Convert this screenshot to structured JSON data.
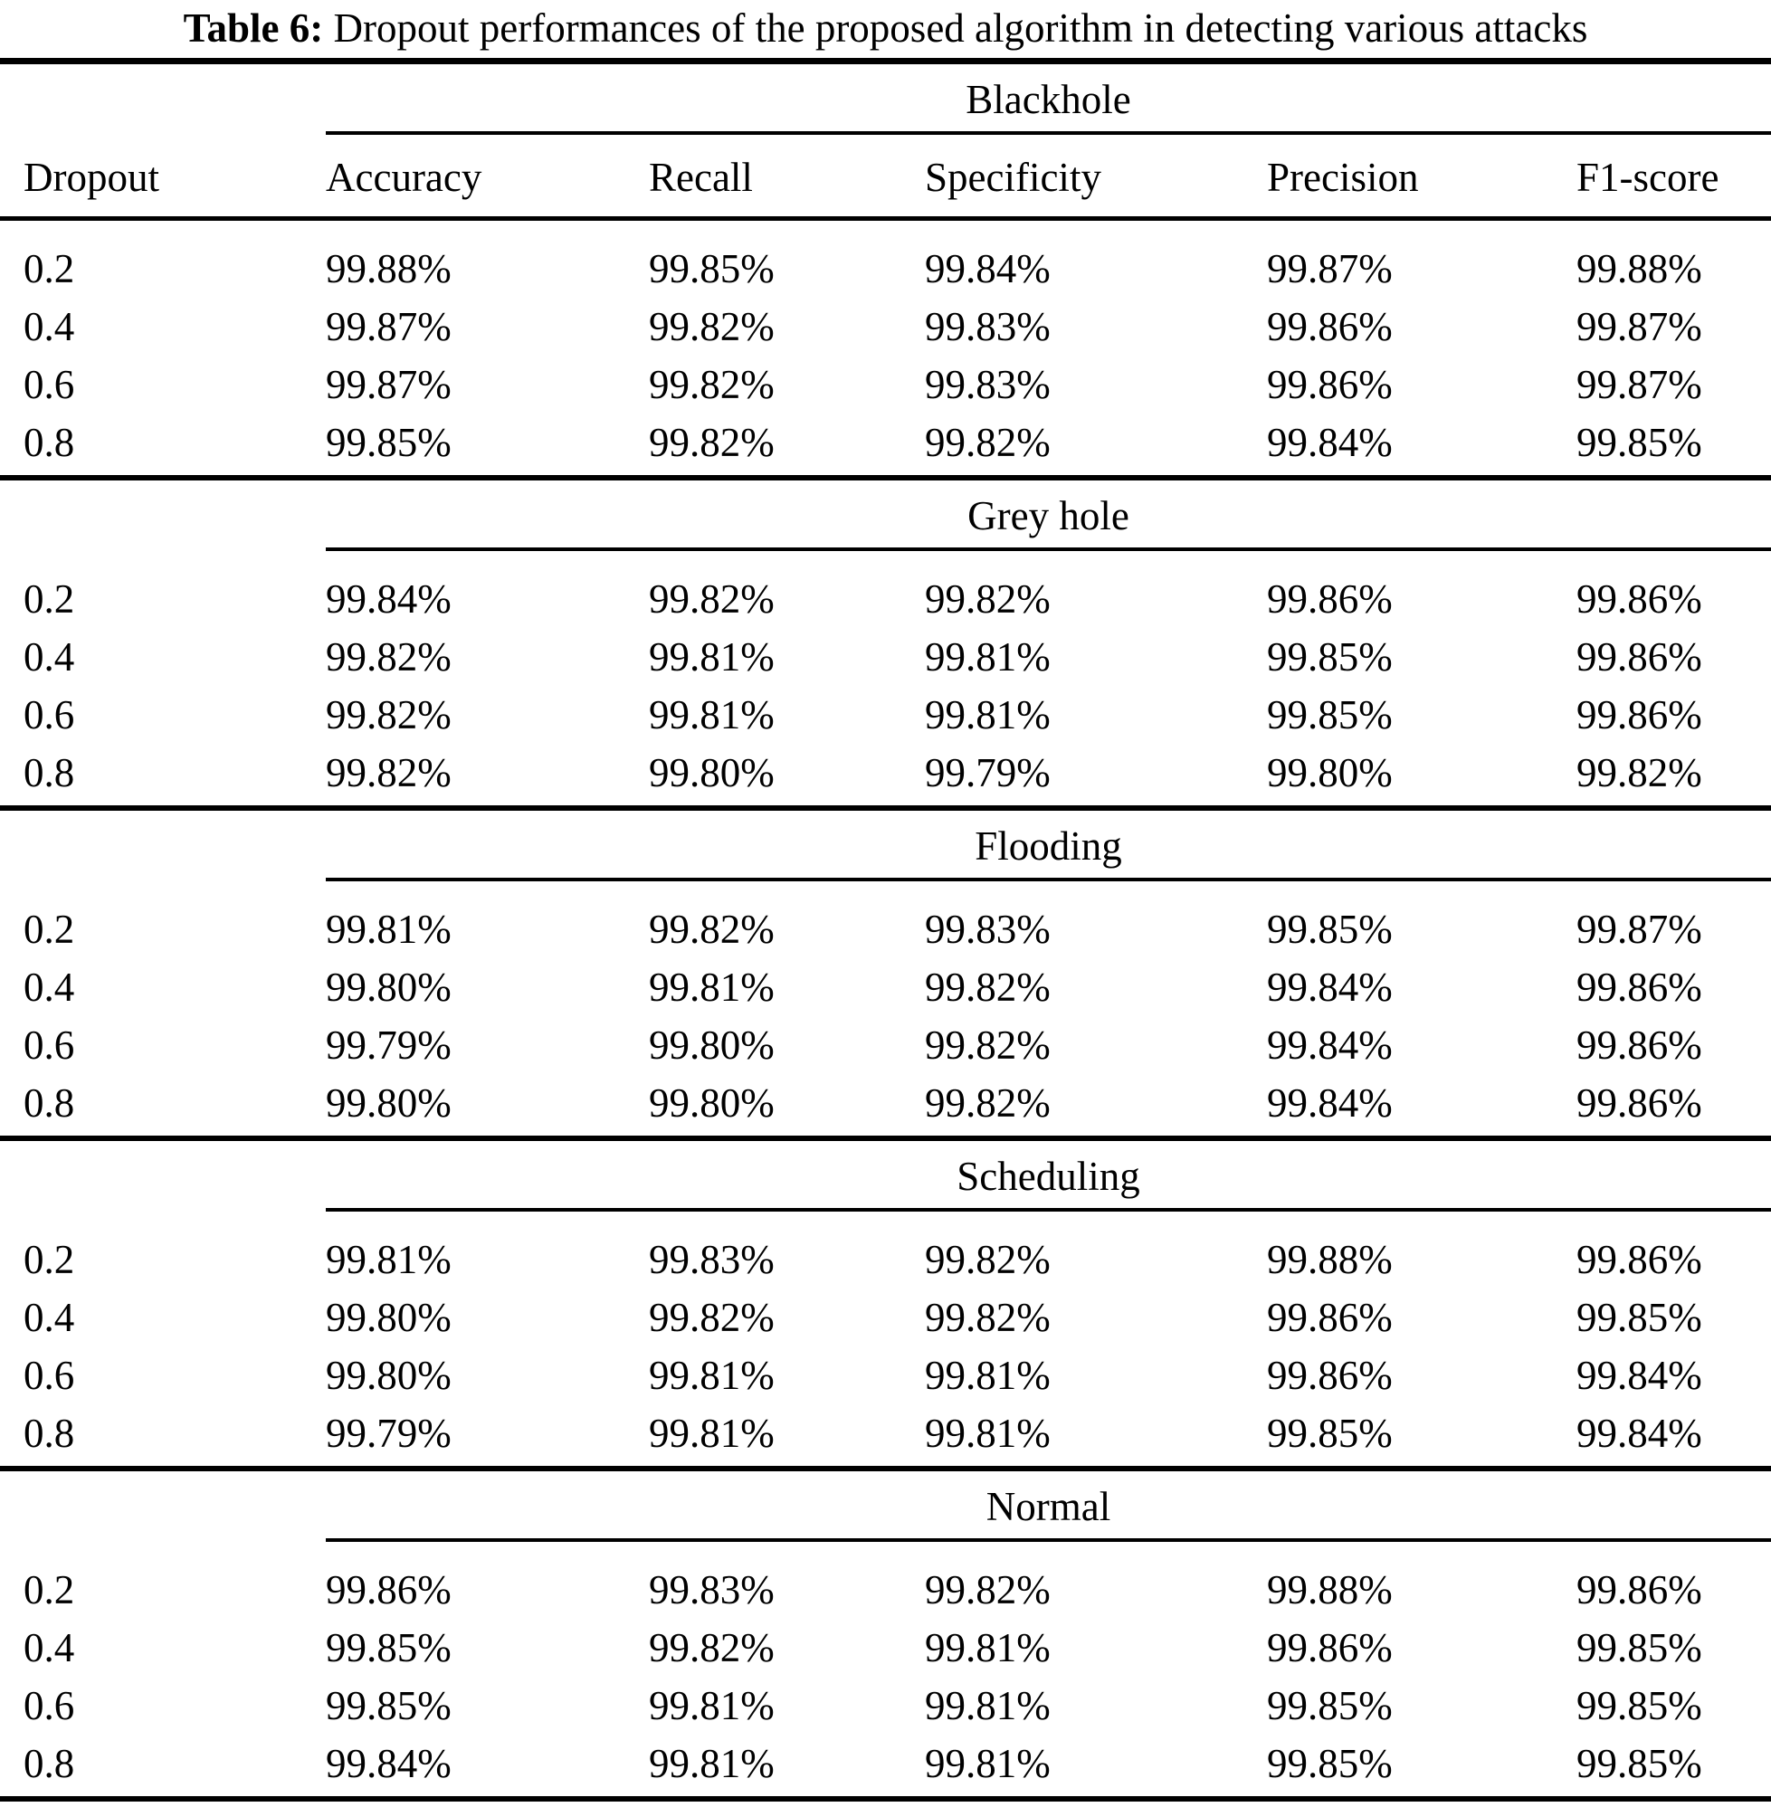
{
  "caption": {
    "label": "Table 6:",
    "text": "Dropout performances of the proposed algorithm in detecting various attacks"
  },
  "columns": [
    "Dropout",
    "Accuracy",
    "Recall",
    "Specificity",
    "Precision",
    "F1-score"
  ],
  "sections": [
    {
      "name": "Blackhole",
      "rows": [
        [
          "0.2",
          "99.88%",
          "99.85%",
          "99.84%",
          "99.87%",
          "99.88%"
        ],
        [
          "0.4",
          "99.87%",
          "99.82%",
          "99.83%",
          "99.86%",
          "99.87%"
        ],
        [
          "0.6",
          "99.87%",
          "99.82%",
          "99.83%",
          "99.86%",
          "99.87%"
        ],
        [
          "0.8",
          "99.85%",
          "99.82%",
          "99.82%",
          "99.84%",
          "99.85%"
        ]
      ]
    },
    {
      "name": "Grey hole",
      "rows": [
        [
          "0.2",
          "99.84%",
          "99.82%",
          "99.82%",
          "99.86%",
          "99.86%"
        ],
        [
          "0.4",
          "99.82%",
          "99.81%",
          "99.81%",
          "99.85%",
          "99.86%"
        ],
        [
          "0.6",
          "99.82%",
          "99.81%",
          "99.81%",
          "99.85%",
          "99.86%"
        ],
        [
          "0.8",
          "99.82%",
          "99.80%",
          "99.79%",
          "99.80%",
          "99.82%"
        ]
      ]
    },
    {
      "name": "Flooding",
      "rows": [
        [
          "0.2",
          "99.81%",
          "99.82%",
          "99.83%",
          "99.85%",
          "99.87%"
        ],
        [
          "0.4",
          "99.80%",
          "99.81%",
          "99.82%",
          "99.84%",
          "99.86%"
        ],
        [
          "0.6",
          "99.79%",
          "99.80%",
          "99.82%",
          "99.84%",
          "99.86%"
        ],
        [
          "0.8",
          "99.80%",
          "99.80%",
          "99.82%",
          "99.84%",
          "99.86%"
        ]
      ]
    },
    {
      "name": "Scheduling",
      "rows": [
        [
          "0.2",
          "99.81%",
          "99.83%",
          "99.82%",
          "99.88%",
          "99.86%"
        ],
        [
          "0.4",
          "99.80%",
          "99.82%",
          "99.82%",
          "99.86%",
          "99.85%"
        ],
        [
          "0.6",
          "99.80%",
          "99.81%",
          "99.81%",
          "99.86%",
          "99.84%"
        ],
        [
          "0.8",
          "99.79%",
          "99.81%",
          "99.81%",
          "99.85%",
          "99.84%"
        ]
      ]
    },
    {
      "name": "Normal",
      "rows": [
        [
          "0.2",
          "99.86%",
          "99.83%",
          "99.82%",
          "99.88%",
          "99.86%"
        ],
        [
          "0.4",
          "99.85%",
          "99.82%",
          "99.81%",
          "99.86%",
          "99.85%"
        ],
        [
          "0.6",
          "99.85%",
          "99.81%",
          "99.81%",
          "99.85%",
          "99.85%"
        ],
        [
          "0.8",
          "99.84%",
          "99.81%",
          "99.81%",
          "99.85%",
          "99.85%"
        ]
      ]
    }
  ]
}
